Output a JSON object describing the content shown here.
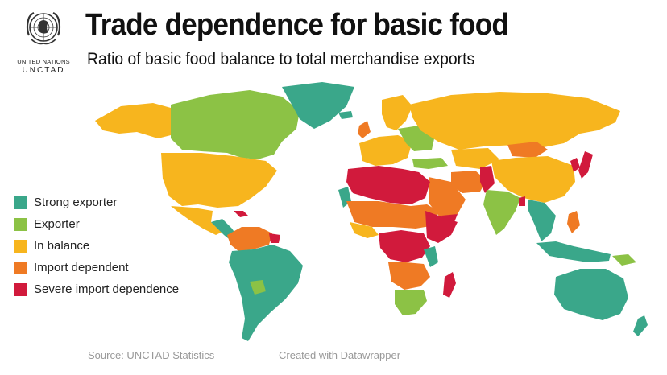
{
  "logo": {
    "line1": "UNITED NATIONS",
    "line2": "UNCTAD"
  },
  "title": "Trade dependence for basic food",
  "subtitle": "Ratio of basic food balance to total merchandise exports",
  "legend": [
    {
      "label": "Strong exporter",
      "color": "#3aa78a"
    },
    {
      "label": "Exporter",
      "color": "#8cc245"
    },
    {
      "label": "In balance",
      "color": "#f7b51e"
    },
    {
      "label": "Import dependent",
      "color": "#ef7a24"
    },
    {
      "label": "Severe import dependence",
      "color": "#d11a3c"
    }
  ],
  "footer": {
    "source": "Source: UNCTAD Statistics",
    "credit": "Created with Datawrapper"
  }
}
